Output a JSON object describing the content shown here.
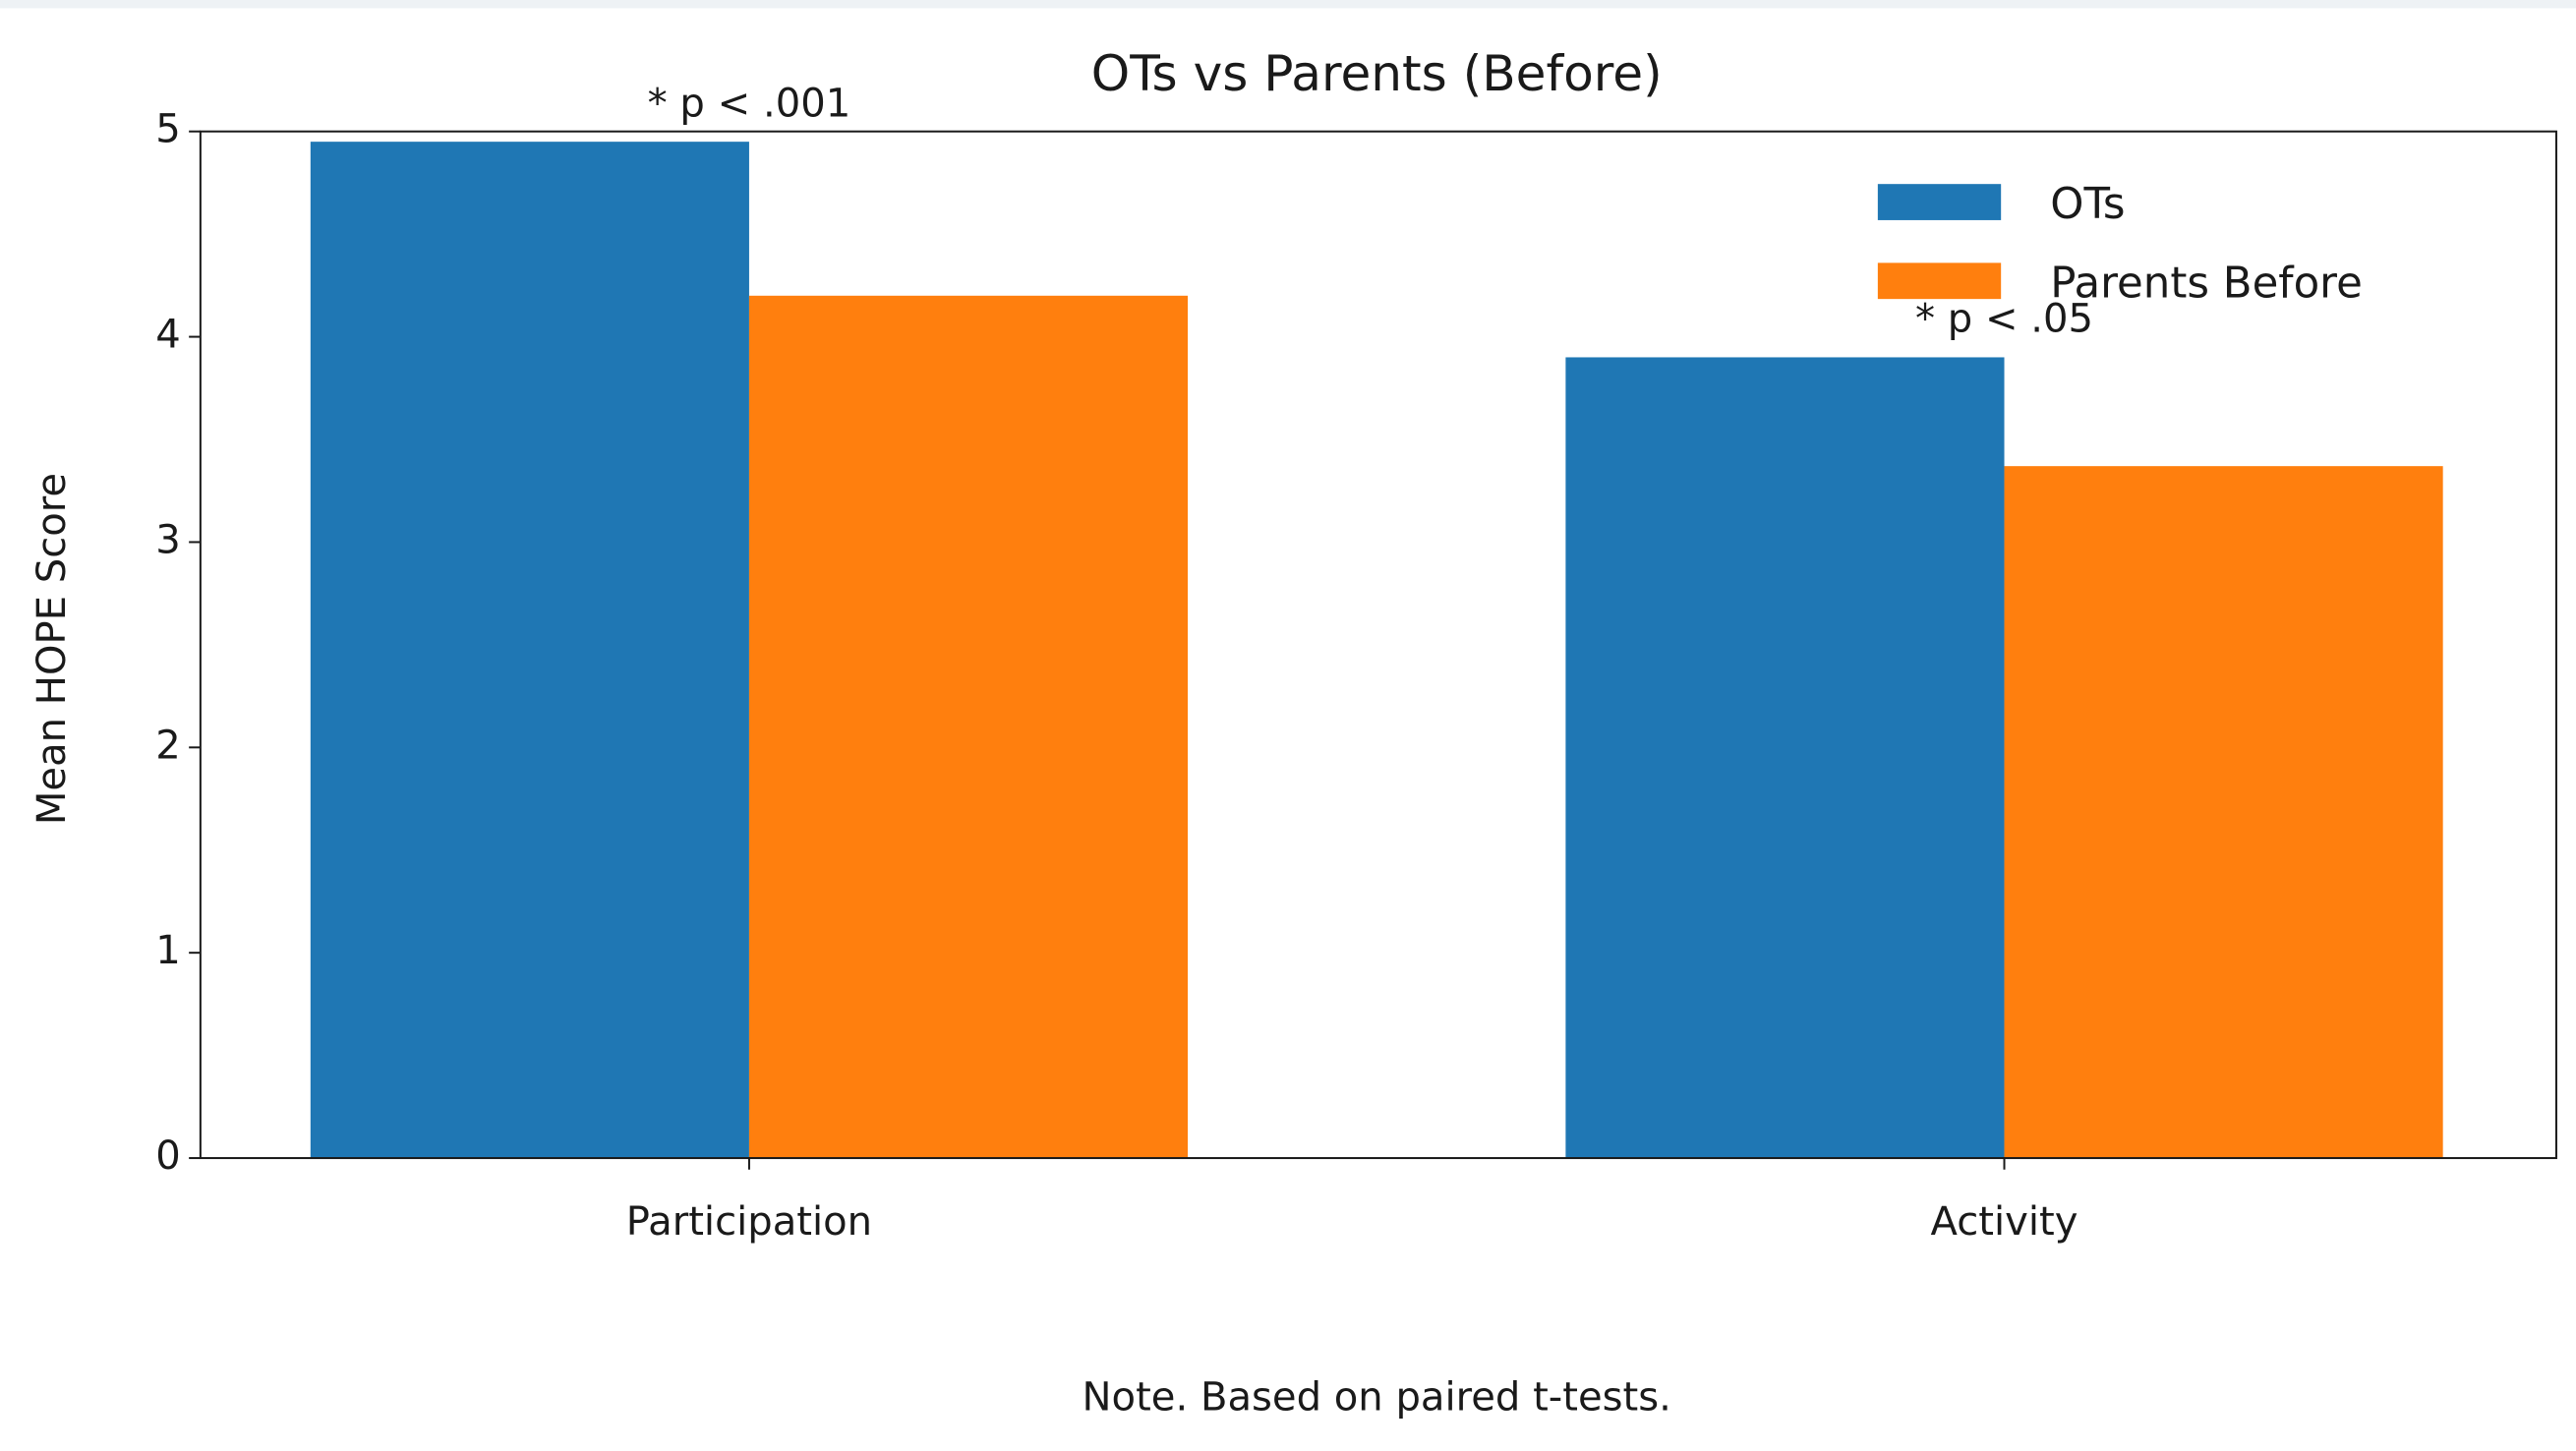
{
  "chart_data": {
    "type": "bar",
    "title": "OTs vs Parents (Before)",
    "ylabel": "Mean HOPE Score",
    "categories": [
      "Participation",
      "Activity"
    ],
    "series": [
      {
        "name": "OTs",
        "color": "#1f77b4",
        "values": [
          4.95,
          3.9
        ]
      },
      {
        "name": "Parents Before",
        "color": "#ff7f0e",
        "values": [
          4.2,
          3.37
        ]
      }
    ],
    "annotations": [
      "* p < .001",
      "* p < .05"
    ],
    "note": "Note. Based on paired t-tests.",
    "ylim": [
      0,
      5
    ],
    "yticks": [
      0,
      1,
      2,
      3,
      4,
      5
    ],
    "legend": "upper right"
  }
}
